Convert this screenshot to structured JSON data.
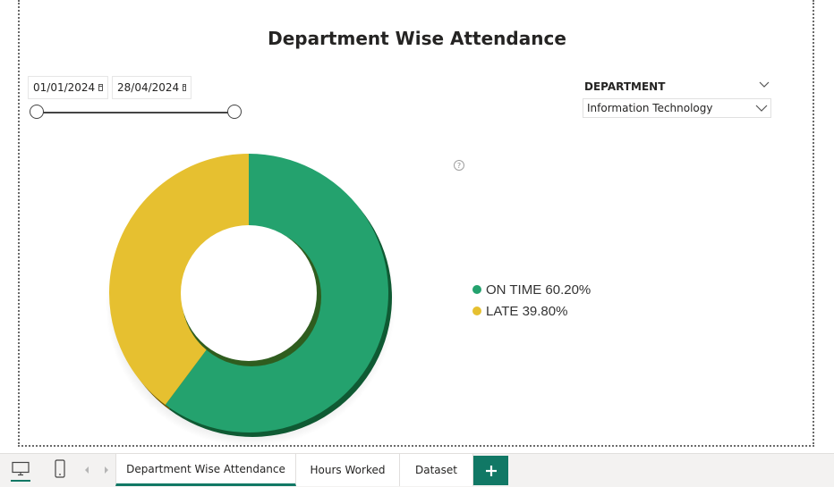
{
  "report": {
    "title": "Department Wise Attendance"
  },
  "date_slicer": {
    "start_date": "01/01/2024",
    "end_date": "28/04/2024"
  },
  "department_slicer": {
    "label": "DEPARTMENT",
    "selected_value": "Information Technology"
  },
  "chart_data": {
    "type": "pie",
    "variant": "donut",
    "categories": [
      "ON TIME",
      "LATE"
    ],
    "values": [
      60.2,
      39.8
    ],
    "unit": "%",
    "colors": [
      "#24a26e",
      "#e6c030"
    ],
    "legend": [
      "ON TIME 60.20%",
      "LATE 39.80%"
    ],
    "legend_position": "right"
  },
  "tabs": [
    {
      "label": "Department Wise Attendance",
      "active": true
    },
    {
      "label": "Hours Worked",
      "active": false
    },
    {
      "label": "Dataset",
      "active": false
    }
  ],
  "tabbar_icons": [
    "desktop-icon",
    "phone-icon",
    "chevron-left-icon",
    "chevron-right-icon",
    "plus-icon"
  ],
  "colors": {
    "accent": "#117865",
    "on_time": "#24a26e",
    "late": "#e6c030"
  }
}
